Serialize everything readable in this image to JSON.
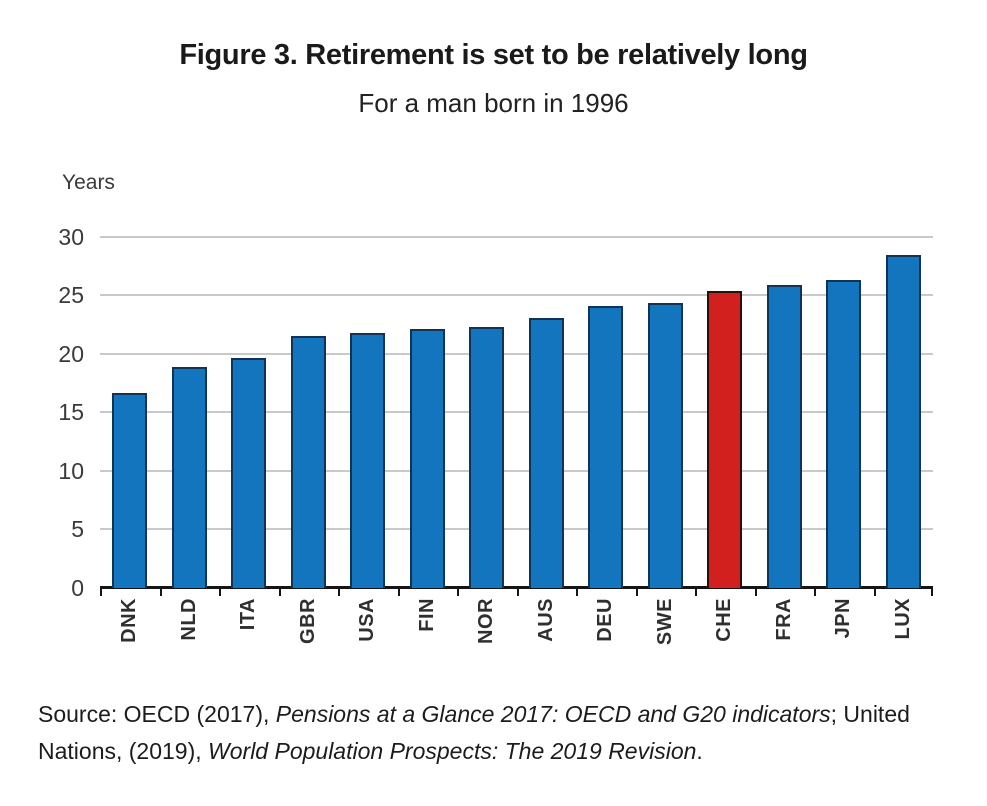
{
  "chart_data": {
    "type": "bar",
    "title": "Figure 3. Retirement is set to be relatively long",
    "subtitle": "For a man born in 1996",
    "ylabel": "Years",
    "categories": [
      "DNK",
      "NLD",
      "ITA",
      "GBR",
      "USA",
      "FIN",
      "NOR",
      "AUS",
      "DEU",
      "SWE",
      "CHE",
      "FRA",
      "JPN",
      "LUX"
    ],
    "values": [
      16.7,
      18.9,
      19.7,
      21.5,
      21.8,
      22.1,
      22.3,
      23.1,
      24.1,
      24.4,
      25.4,
      25.9,
      26.3,
      28.5
    ],
    "ylim": [
      0,
      30
    ],
    "yticks": [
      0,
      5,
      10,
      15,
      20,
      25,
      30
    ],
    "grid": true,
    "legend": "none",
    "highlight_category": "CHE",
    "bar_color": "#1375BD",
    "bar_outline": "#113355",
    "highlight_color": "#D2201F",
    "highlight_outline": "#2A0F0F"
  },
  "source": {
    "prefix": "Source: OECD (2017), ",
    "italic1": "Pensions at a Glance 2017: OECD and G20 indicators",
    "middle": "; United Nations, (2019), ",
    "italic2": "World Population Prospects: The 2019 Revision",
    "suffix": "."
  }
}
